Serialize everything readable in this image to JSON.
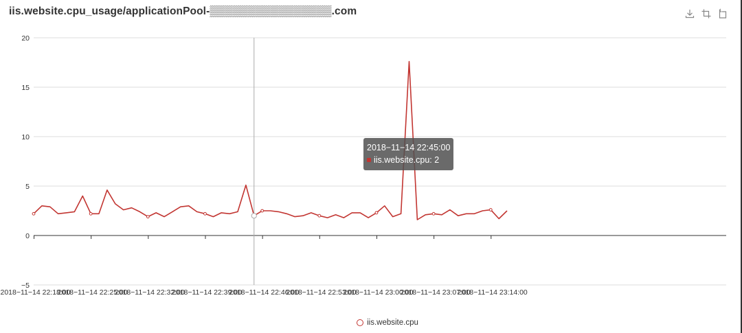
{
  "title": "iis.website.cpu_usage/applicationPool-▒▒▒▒▒▒▒▒▒▒▒▒▒▒▒▒.com",
  "toolbox": {
    "icons": [
      "download-icon",
      "zoom-icon",
      "restore-icon"
    ]
  },
  "tooltip": {
    "time": "2018−11−14 22:45:00",
    "series_label": "iis.website.cpu: 2"
  },
  "legend": {
    "label": "iis.website.cpu"
  },
  "colors": {
    "series": "#c23531",
    "grid": "#dddddd",
    "axis": "#333333",
    "pointer": "#aaaaaa"
  },
  "chart_data": {
    "type": "line",
    "title": "",
    "xlabel": "",
    "ylabel": "",
    "ylim": [
      -5,
      20
    ],
    "y_ticks": [
      -5,
      0,
      5,
      10,
      15,
      20
    ],
    "y_tick_labels": [
      "−5",
      "0",
      "5",
      "10",
      "15",
      "20"
    ],
    "grid": true,
    "legend_position": "bottom-center",
    "x_tick_labels": [
      "2018−11−14 22:18:00",
      "2018−11−14 22:25:00",
      "2018−11−14 22:32:00",
      "2018−11−14 22:39:00",
      "2018−11−14 22:46:00",
      "2018−11−14 22:53:00",
      "2018−11−14 23:00:00",
      "2018−11−14 23:07:00",
      "2018−11−14 23:14:00"
    ],
    "x_start": "2018-11-14 22:18:00",
    "x_step_minutes": 1,
    "series": [
      {
        "name": "iis.website.cpu",
        "values": [
          2.2,
          3.0,
          2.9,
          2.2,
          2.3,
          2.4,
          4.0,
          2.2,
          2.2,
          4.6,
          3.2,
          2.6,
          2.8,
          2.4,
          1.9,
          2.3,
          1.9,
          2.4,
          2.9,
          3.0,
          2.4,
          2.2,
          1.9,
          2.3,
          2.2,
          2.4,
          5.1,
          2.0,
          2.5,
          2.5,
          2.4,
          2.2,
          1.9,
          2.0,
          2.3,
          2.0,
          1.8,
          2.1,
          1.8,
          2.3,
          2.3,
          1.8,
          2.3,
          3.0,
          1.9,
          2.2,
          17.6,
          1.6,
          2.1,
          2.2,
          2.1,
          2.6,
          2.0,
          2.2,
          2.2,
          2.5,
          2.6,
          1.7,
          2.5
        ]
      }
    ],
    "hover_index": 27
  }
}
